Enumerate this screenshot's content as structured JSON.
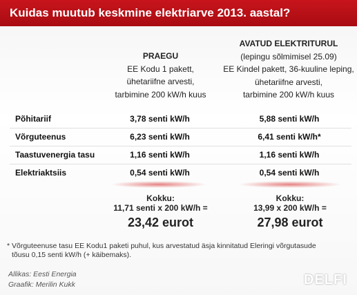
{
  "header": {
    "title": "Kuidas muutub keskmine elektriarve 2013. aastal?"
  },
  "columns": [
    {
      "title": "PRAEGU",
      "lines": [
        "EE Kodu 1 pakett,",
        "ühetariifne arvesti,",
        "tarbimine 200 kW/h kuus"
      ]
    },
    {
      "title": "AVATUD ELEKTRITURUL",
      "lines": [
        "(lepingu sõlmimisel 25.09)",
        "EE Kindel pakett, 36-kuuline leping,",
        "ühetariifne arvesti,",
        "tarbimine 200 kW/h kuus"
      ]
    }
  ],
  "rows": [
    [
      "Põhitariif",
      "3,78 senti kW/h",
      "5,88 senti kW/h"
    ],
    [
      "Võrguteenus",
      "6,23 senti kW/h",
      "6,41 senti kW/h*"
    ],
    [
      "Taastuvenergia tasu",
      "1,16 senti kW/h",
      "1,16 senti kW/h"
    ],
    [
      "Elektriaktsiis",
      "0,54 senti kW/h",
      "0,54 senti kW/h"
    ]
  ],
  "totals": [
    {
      "label": "Kokku:",
      "formula": "11,71 senti x 200 kW/h =",
      "amount": "23,42 eurot"
    },
    {
      "label": "Kokku:",
      "formula": "13,99 x 200 kW/h =",
      "amount": "27,98 eurot"
    }
  ],
  "footnote": [
    "* Võrguteenuse tasu EE Kodu1 paketi puhul, kus arvestatud äsja kinnitatud Eleringi võrgutasude",
    "tõusu 0,15 senti kW/h (+ käibemaks)."
  ],
  "source": "Allikas: Eesti Energia",
  "author": "Graafik: Merilin Kukk",
  "logo": "DELFI"
}
